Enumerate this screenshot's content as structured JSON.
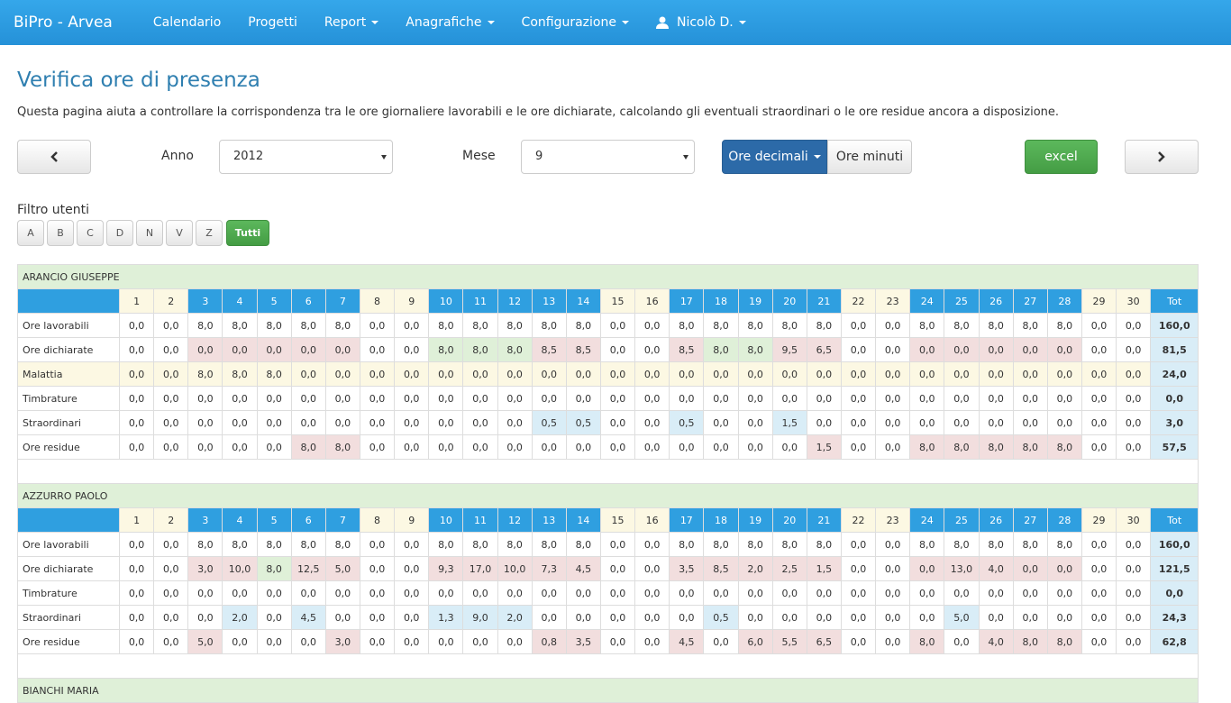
{
  "nav": {
    "brand": "BiPro - Arvea",
    "items": [
      {
        "label": "Calendario",
        "dropdown": false
      },
      {
        "label": "Progetti",
        "dropdown": false
      },
      {
        "label": "Report",
        "dropdown": true
      },
      {
        "label": "Anagrafiche",
        "dropdown": true
      },
      {
        "label": "Configurazione",
        "dropdown": true
      }
    ],
    "user": "Nicolò D."
  },
  "header": {
    "title": "Verifica ore di presenza",
    "description": "Questa pagina aiuta a controllare la corrispondenza tra le ore giornaliere lavorabili e le ore dichiarate, calcolando gli eventuali straordinari o le ore residue ancora a disposizione."
  },
  "controls": {
    "year_label": "Anno",
    "year": "2012",
    "month_label": "Mese",
    "month": "9",
    "mode_active": "Ore decimali",
    "mode_other": "Ore minuti",
    "export": "excel"
  },
  "filter": {
    "label": "Filtro utenti",
    "letters": [
      "A",
      "B",
      "C",
      "D",
      "N",
      "V",
      "Z"
    ],
    "all": "Tutti"
  },
  "tints": {
    "w": "#fcf8e3",
    "l": "#2f9fe0",
    "r": "#f2dede",
    "g": "#dff0d8",
    "b": "#d9edf7",
    "y": "#fcf8e3"
  },
  "table_header": {
    "days": [
      "1",
      "2",
      "3",
      "4",
      "5",
      "6",
      "7",
      "8",
      "9",
      "10",
      "11",
      "12",
      "13",
      "14",
      "15",
      "16",
      "17",
      "18",
      "19",
      "20",
      "21",
      "22",
      "23",
      "24",
      "25",
      "26",
      "27",
      "28",
      "29",
      "30"
    ],
    "day_kinds": "wwlllllwwlllllwwlllllwwlllllww",
    "total": "Tot"
  },
  "users": [
    {
      "name": "ARANCIO GIUSEPPE",
      "rows": [
        {
          "label": "Ore lavorabili",
          "shades": "------------------------------",
          "total": "160,0",
          "cells": [
            "0,0",
            "0,0",
            "8,0",
            "8,0",
            "8,0",
            "8,0",
            "8,0",
            "0,0",
            "0,0",
            "8,0",
            "8,0",
            "8,0",
            "8,0",
            "8,0",
            "0,0",
            "0,0",
            "8,0",
            "8,0",
            "8,0",
            "8,0",
            "8,0",
            "0,0",
            "0,0",
            "8,0",
            "8,0",
            "8,0",
            "8,0",
            "8,0",
            "0,0",
            "0,0"
          ]
        },
        {
          "label": "Ore dichiarate",
          "shades": "--rrrrr--gggrr--rggrr--rrrrr--",
          "total": "81,5",
          "cells": [
            "0,0",
            "0,0",
            "0,0",
            "0,0",
            "0,0",
            "0,0",
            "0,0",
            "0,0",
            "0,0",
            "8,0",
            "8,0",
            "8,0",
            "8,5",
            "8,5",
            "0,0",
            "0,0",
            "8,5",
            "8,0",
            "8,0",
            "9,5",
            "6,5",
            "0,0",
            "0,0",
            "0,0",
            "0,0",
            "0,0",
            "0,0",
            "0,0",
            "0,0",
            "0,0"
          ]
        },
        {
          "label": "Malattia",
          "row_tint": "y",
          "shades": "yyyyyyyyyyyyyyyyyyyyyyyyyyyyyy",
          "total": "24,0",
          "cells": [
            "0,0",
            "0,0",
            "8,0",
            "8,0",
            "8,0",
            "0,0",
            "0,0",
            "0,0",
            "0,0",
            "0,0",
            "0,0",
            "0,0",
            "0,0",
            "0,0",
            "0,0",
            "0,0",
            "0,0",
            "0,0",
            "0,0",
            "0,0",
            "0,0",
            "0,0",
            "0,0",
            "0,0",
            "0,0",
            "0,0",
            "0,0",
            "0,0",
            "0,0",
            "0,0"
          ]
        },
        {
          "label": "Timbrature",
          "shades": "------------------------------",
          "total": "0,0",
          "cells": [
            "0,0",
            "0,0",
            "0,0",
            "0,0",
            "0,0",
            "0,0",
            "0,0",
            "0,0",
            "0,0",
            "0,0",
            "0,0",
            "0,0",
            "0,0",
            "0,0",
            "0,0",
            "0,0",
            "0,0",
            "0,0",
            "0,0",
            "0,0",
            "0,0",
            "0,0",
            "0,0",
            "0,0",
            "0,0",
            "0,0",
            "0,0",
            "0,0",
            "0,0",
            "0,0"
          ]
        },
        {
          "label": "Straordinari",
          "shades": "------------bb--b--b----------",
          "total": "3,0",
          "cells": [
            "0,0",
            "0,0",
            "0,0",
            "0,0",
            "0,0",
            "0,0",
            "0,0",
            "0,0",
            "0,0",
            "0,0",
            "0,0",
            "0,0",
            "0,5",
            "0,5",
            "0,0",
            "0,0",
            "0,5",
            "0,0",
            "0,0",
            "1,5",
            "0,0",
            "0,0",
            "0,0",
            "0,0",
            "0,0",
            "0,0",
            "0,0",
            "0,0",
            "0,0",
            "0,0"
          ]
        },
        {
          "label": "Ore residue",
          "shades": "-----rr-------------r--rrrrr--",
          "total": "57,5",
          "cells": [
            "0,0",
            "0,0",
            "0,0",
            "0,0",
            "0,0",
            "8,0",
            "8,0",
            "0,0",
            "0,0",
            "0,0",
            "0,0",
            "0,0",
            "0,0",
            "0,0",
            "0,0",
            "0,0",
            "0,0",
            "0,0",
            "0,0",
            "0,0",
            "1,5",
            "0,0",
            "0,0",
            "8,0",
            "8,0",
            "8,0",
            "8,0",
            "8,0",
            "0,0",
            "0,0"
          ]
        }
      ]
    },
    {
      "name": "AZZURRO PAOLO",
      "rows": [
        {
          "label": "Ore lavorabili",
          "shades": "------------------------------",
          "total": "160,0",
          "cells": [
            "0,0",
            "0,0",
            "8,0",
            "8,0",
            "8,0",
            "8,0",
            "8,0",
            "0,0",
            "0,0",
            "8,0",
            "8,0",
            "8,0",
            "8,0",
            "8,0",
            "0,0",
            "0,0",
            "8,0",
            "8,0",
            "8,0",
            "8,0",
            "8,0",
            "0,0",
            "0,0",
            "8,0",
            "8,0",
            "8,0",
            "8,0",
            "8,0",
            "0,0",
            "0,0"
          ]
        },
        {
          "label": "Ore dichiarate",
          "shades": "--rrgrr--rrrrr--rrrrr--rrrrr--",
          "total": "121,5",
          "cells": [
            "0,0",
            "0,0",
            "3,0",
            "10,0",
            "8,0",
            "12,5",
            "5,0",
            "0,0",
            "0,0",
            "9,3",
            "17,0",
            "10,0",
            "7,3",
            "4,5",
            "0,0",
            "0,0",
            "3,5",
            "8,5",
            "2,0",
            "2,5",
            "1,5",
            "0,0",
            "0,0",
            "0,0",
            "13,0",
            "4,0",
            "0,0",
            "0,0",
            "0,0",
            "0,0"
          ]
        },
        {
          "label": "Timbrature",
          "shades": "------------------------------",
          "total": "0,0",
          "cells": [
            "0,0",
            "0,0",
            "0,0",
            "0,0",
            "0,0",
            "0,0",
            "0,0",
            "0,0",
            "0,0",
            "0,0",
            "0,0",
            "0,0",
            "0,0",
            "0,0",
            "0,0",
            "0,0",
            "0,0",
            "0,0",
            "0,0",
            "0,0",
            "0,0",
            "0,0",
            "0,0",
            "0,0",
            "0,0",
            "0,0",
            "0,0",
            "0,0",
            "0,0",
            "0,0"
          ]
        },
        {
          "label": "Straordinari",
          "shades": "---b-b---bbb-----b------b-----",
          "total": "24,3",
          "cells": [
            "0,0",
            "0,0",
            "0,0",
            "2,0",
            "0,0",
            "4,5",
            "0,0",
            "0,0",
            "0,0",
            "1,3",
            "9,0",
            "2,0",
            "0,0",
            "0,0",
            "0,0",
            "0,0",
            "0,0",
            "0,5",
            "0,0",
            "0,0",
            "0,0",
            "0,0",
            "0,0",
            "0,0",
            "5,0",
            "0,0",
            "0,0",
            "0,0",
            "0,0",
            "0,0"
          ]
        },
        {
          "label": "Ore residue",
          "shades": "--r---r-----rr--r-rrr--r-rrr--",
          "total": "62,8",
          "cells": [
            "0,0",
            "0,0",
            "5,0",
            "0,0",
            "0,0",
            "0,0",
            "3,0",
            "0,0",
            "0,0",
            "0,0",
            "0,0",
            "0,0",
            "0,8",
            "3,5",
            "0,0",
            "0,0",
            "4,5",
            "0,0",
            "6,0",
            "5,5",
            "6,5",
            "0,0",
            "0,0",
            "8,0",
            "0,0",
            "4,0",
            "8,0",
            "8,0",
            "0,0",
            "0,0"
          ]
        }
      ]
    },
    {
      "name": "BIANCHI MARIA",
      "rows": []
    }
  ]
}
